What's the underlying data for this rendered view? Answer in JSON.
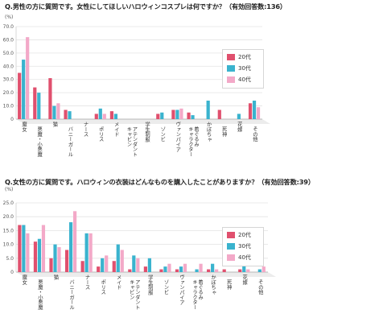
{
  "chart_data": [
    {
      "type": "bar",
      "title": "Q.男性の方に質問です。女性にしてほしいハロウィンコスプレは何ですか？（有効回答数:136）",
      "ylabel": "(%)",
      "ylim": [
        0,
        70
      ],
      "yticks": [
        "0",
        "10.0",
        "20.0",
        "30.0",
        "40.0",
        "50.0",
        "60.0",
        "70.0"
      ],
      "grid": true,
      "legend_position": "right",
      "categories": [
        "魔女",
        "悪魔・小悪魔",
        "猫",
        "バニーガール",
        "ナース",
        "ポリス",
        "メイド",
        "キャビン\nアテンダント",
        "学生制服",
        "ゾンビ",
        "ヴァンパイア",
        "キャラクター\n着ぐるみ",
        "かぼちゃ",
        "死神",
        "花嫁",
        "その他"
      ],
      "series": [
        {
          "name": "20代",
          "color": "#e0506e",
          "values": [
            35,
            24,
            31,
            7,
            0,
            4,
            6,
            0,
            0,
            4,
            7,
            5,
            0,
            7,
            0,
            12
          ]
        },
        {
          "name": "30代",
          "color": "#3ab3ce",
          "values": [
            45,
            20,
            10,
            6,
            0,
            8,
            4,
            0,
            0,
            5,
            7,
            3,
            14,
            0,
            4,
            14
          ]
        },
        {
          "name": "40代",
          "color": "#f3a9c8",
          "values": [
            62,
            0,
            12,
            0,
            0,
            4,
            0,
            0,
            0,
            0,
            8,
            0,
            0,
            0,
            0,
            9
          ]
        }
      ]
    },
    {
      "type": "bar",
      "title": "Q.女性の方に質問です。ハロウィンの衣装はどんなものを購入したことがありますか？（有効回答数:39）",
      "ylabel": "(%)",
      "ylim": [
        0,
        25
      ],
      "yticks": [
        "0",
        "5.0",
        "10.0",
        "15.0",
        "20.0",
        "25.0"
      ],
      "grid": true,
      "legend_position": "right",
      "categories": [
        "魔女",
        "悪魔・小悪魔",
        "猫",
        "バニーガール",
        "ナース",
        "ポリス",
        "メイド",
        "キャビン\nアテンダント",
        "学生制服",
        "ゾンビ",
        "ヴァンパイア",
        "キャラクター\n着ぐるみ",
        "かぼちゃ",
        "死神",
        "花嫁",
        "その他"
      ],
      "series": [
        {
          "name": "20代",
          "color": "#e0506e",
          "values": [
            17,
            11,
            5,
            8,
            4,
            2,
            4,
            1,
            2,
            1,
            1,
            0,
            1,
            1,
            1,
            0
          ]
        },
        {
          "name": "30代",
          "color": "#3ab3ce",
          "values": [
            17,
            12,
            10,
            18,
            14,
            5,
            10,
            6,
            5,
            2,
            2,
            1,
            3,
            0,
            4,
            1
          ]
        },
        {
          "name": "40代",
          "color": "#f3a9c8",
          "values": [
            14,
            17,
            9,
            22,
            14,
            6,
            8,
            5,
            0,
            3,
            3,
            3,
            1,
            0,
            1,
            2
          ]
        }
      ]
    }
  ]
}
